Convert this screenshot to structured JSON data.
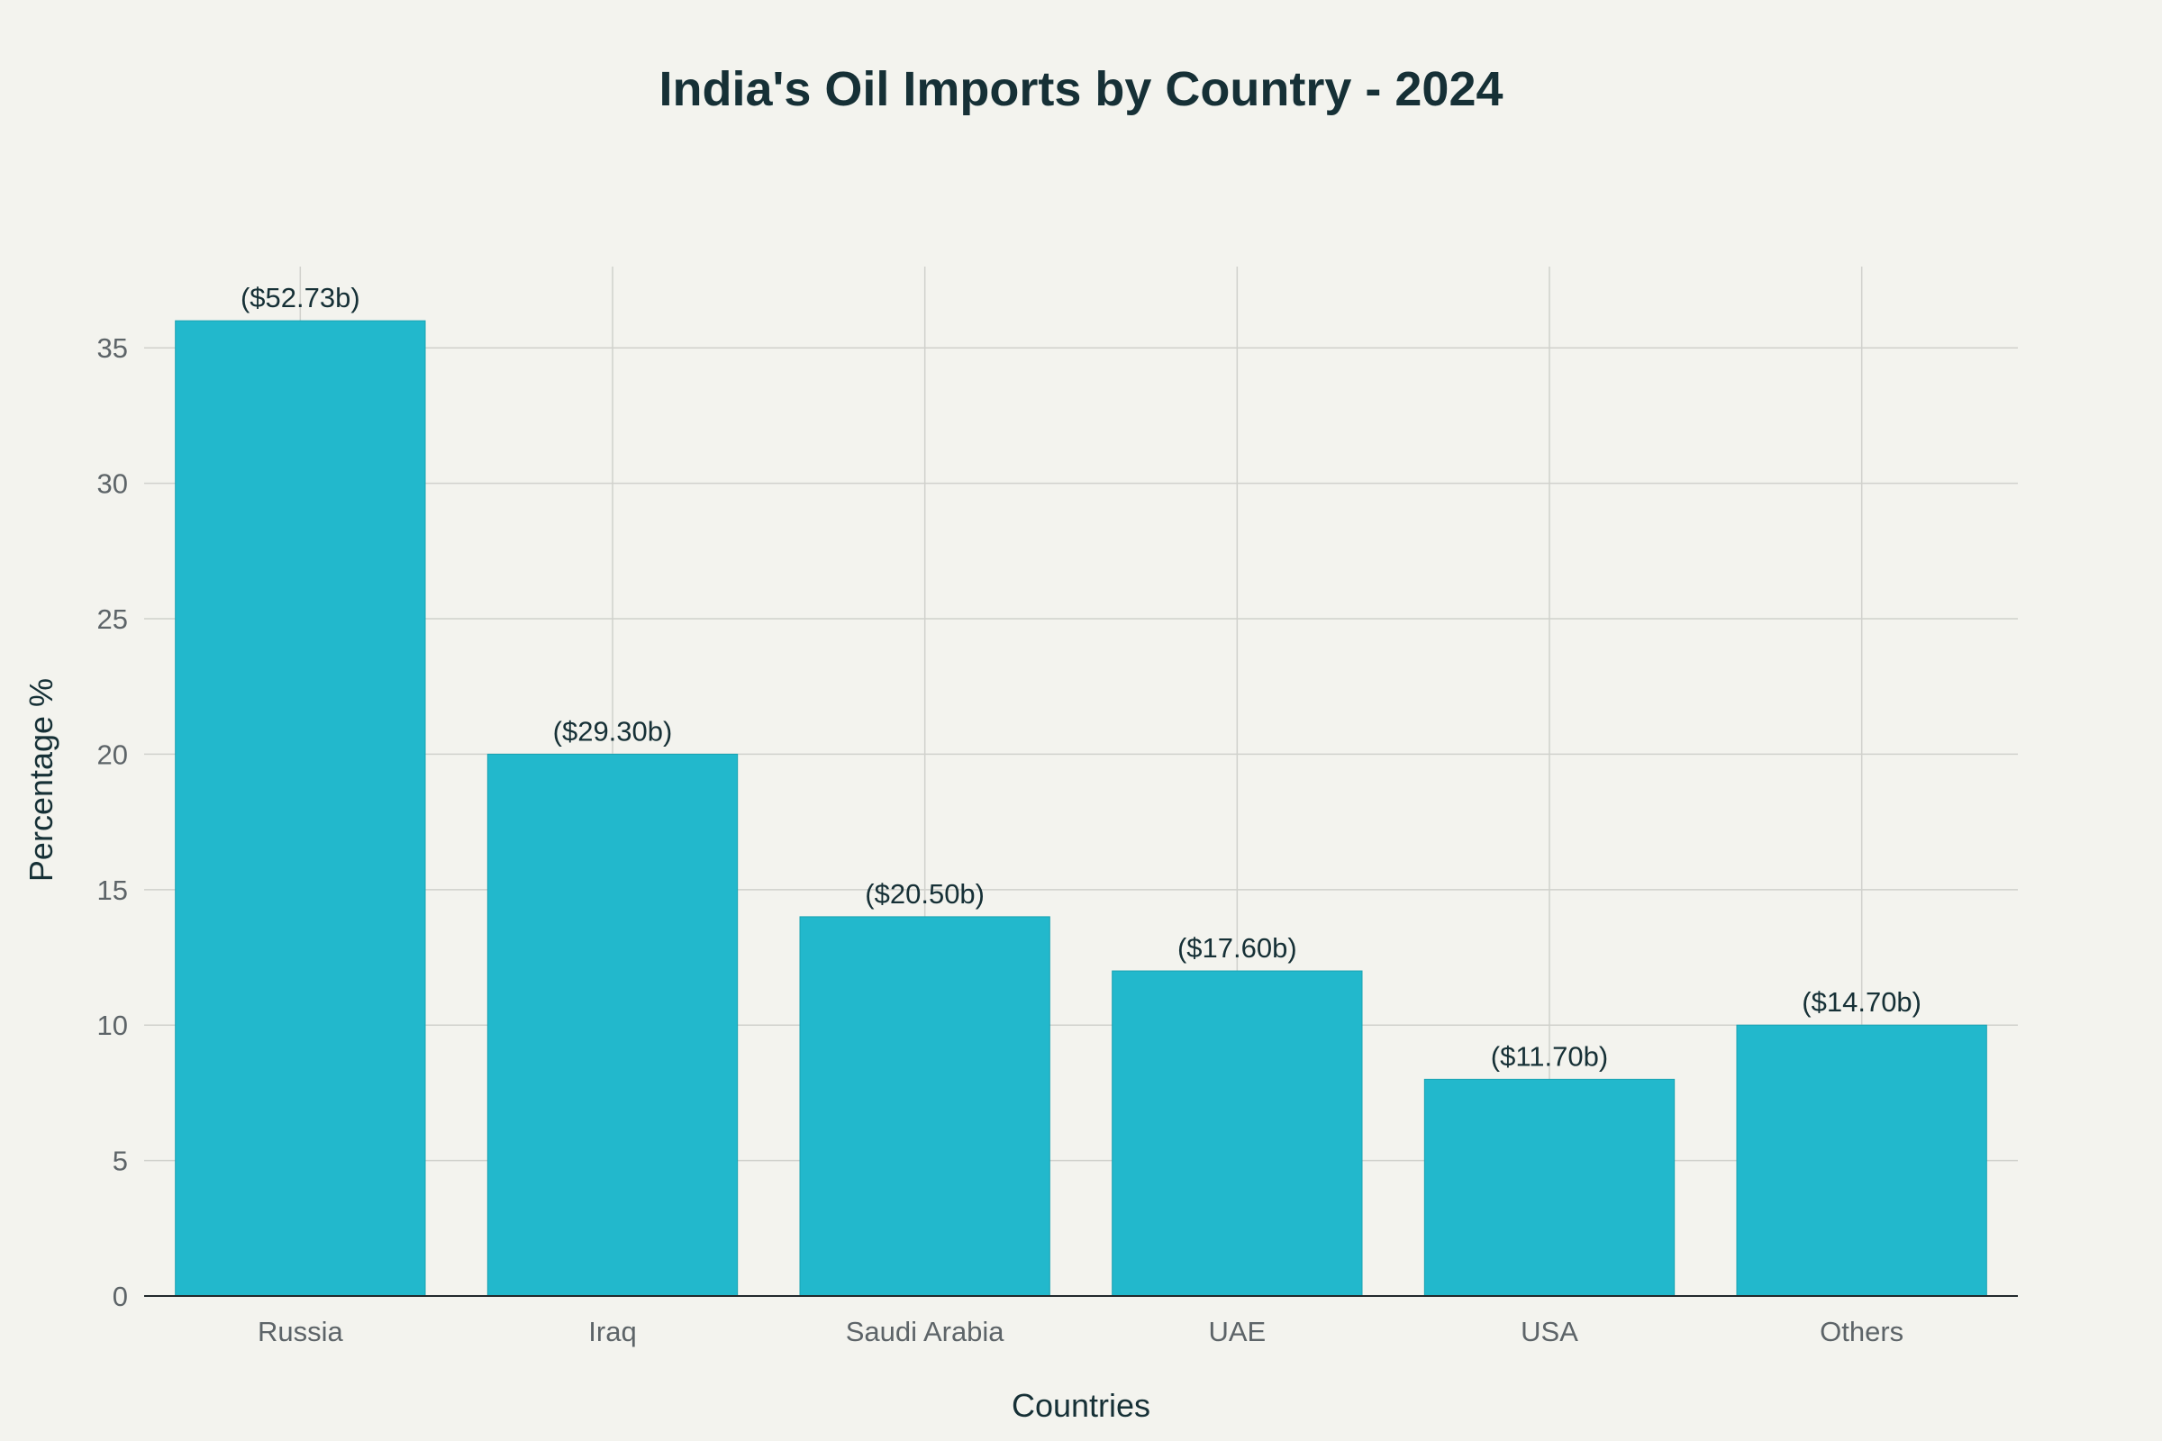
{
  "chart_data": {
    "type": "bar",
    "title": "India's Oil Imports by Country - 2024",
    "xlabel": "Countries",
    "ylabel": "Percentage %",
    "categories": [
      "Russia",
      "Iraq",
      "Saudi Arabia",
      "UAE",
      "USA",
      "Others"
    ],
    "values": [
      36,
      20,
      14,
      12,
      8,
      10
    ],
    "data_labels": [
      "($52.73b)",
      "($29.30b)",
      "($20.50b)",
      "($17.60b)",
      "($11.70b)",
      "($14.70b)"
    ],
    "ylim": [
      0,
      38
    ],
    "yticks": [
      0,
      5,
      10,
      15,
      20,
      25,
      30,
      35
    ],
    "ytick_labels": [
      "0",
      "5",
      "10",
      "15",
      "20",
      "25",
      "30",
      "35"
    ],
    "grid": true,
    "legend": "none",
    "colors": {
      "bar": "#22b8cc",
      "background": "#f3f3ee"
    }
  }
}
